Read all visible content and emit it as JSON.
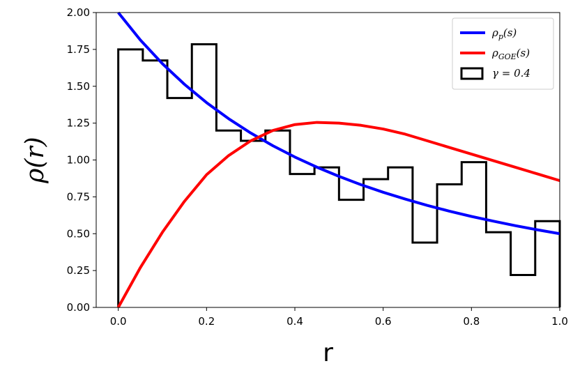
{
  "chart_data": {
    "type": "line",
    "xlabel": "r",
    "ylabel": "ρ(r)",
    "xlim": [
      -0.05,
      1.0
    ],
    "ylim": [
      0.0,
      2.0
    ],
    "xticks": [
      0.0,
      0.2,
      0.4,
      0.6,
      0.8,
      1.0
    ],
    "xtick_labels": [
      "0.0",
      "0.2",
      "0.4",
      "0.6",
      "0.8",
      "1.0"
    ],
    "yticks": [
      0.0,
      0.25,
      0.5,
      0.75,
      1.0,
      1.25,
      1.5,
      1.75,
      2.0
    ],
    "ytick_labels": [
      "0.00",
      "0.25",
      "0.50",
      "0.75",
      "1.00",
      "1.25",
      "1.50",
      "1.75",
      "2.00"
    ],
    "grid": false,
    "legend_position": "top-right",
    "series": [
      {
        "name": "ρp(s)",
        "label_main": "ρ",
        "label_sub": "p",
        "label_tail": "(s)",
        "kind": "line",
        "color": "#0000ff",
        "x": [
          0.0,
          0.05,
          0.1,
          0.15,
          0.2,
          0.25,
          0.3,
          0.35,
          0.4,
          0.45,
          0.5,
          0.55,
          0.6,
          0.65,
          0.7,
          0.75,
          0.8,
          0.85,
          0.9,
          0.95,
          1.0
        ],
        "y": [
          2.0,
          1.814,
          1.653,
          1.513,
          1.389,
          1.28,
          1.183,
          1.097,
          1.02,
          0.951,
          0.889,
          0.832,
          0.781,
          0.735,
          0.692,
          0.653,
          0.617,
          0.585,
          0.554,
          0.526,
          0.5
        ]
      },
      {
        "name": "ρGOE(s)",
        "label_main": "ρ",
        "label_sub": "GOE",
        "label_tail": "(s)",
        "kind": "line",
        "color": "#ff0000",
        "x": [
          0.0,
          0.05,
          0.1,
          0.15,
          0.2,
          0.25,
          0.3,
          0.35,
          0.4,
          0.45,
          0.5,
          0.55,
          0.6,
          0.65,
          0.7,
          0.75,
          0.8,
          0.85,
          0.9,
          0.95,
          1.0
        ],
        "y": [
          0.0,
          0.27,
          0.51,
          0.72,
          0.9,
          1.03,
          1.13,
          1.2,
          1.24,
          1.255,
          1.25,
          1.235,
          1.21,
          1.175,
          1.13,
          1.085,
          1.04,
          0.995,
          0.95,
          0.905,
          0.86
        ]
      },
      {
        "name": "γ = 0.4",
        "label_main": "γ = 0.4",
        "label_sub": "",
        "label_tail": "",
        "kind": "histogram",
        "color": "#000000",
        "bin_edges": [
          0.0,
          0.0556,
          0.1111,
          0.1667,
          0.2222,
          0.2778,
          0.3333,
          0.3889,
          0.4444,
          0.5,
          0.5556,
          0.6111,
          0.6667,
          0.7222,
          0.7778,
          0.8333,
          0.8889,
          0.9444,
          1.0
        ],
        "values": [
          1.75,
          1.675,
          1.42,
          1.785,
          1.2,
          1.13,
          1.2,
          0.905,
          0.95,
          0.73,
          0.87,
          0.95,
          0.44,
          0.835,
          0.985,
          0.51,
          0.22,
          0.585
        ]
      }
    ]
  }
}
